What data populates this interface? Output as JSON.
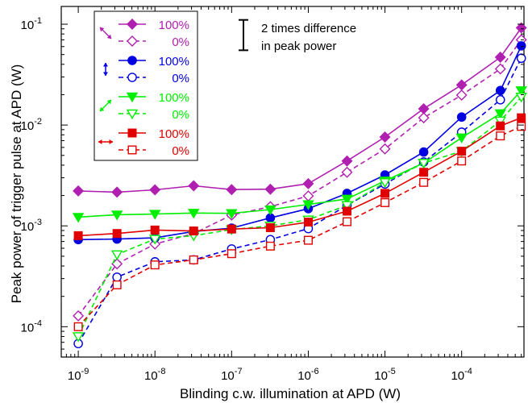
{
  "chart_data": {
    "type": "line",
    "xlabel": "Blinding c.w. illumination at APD (W)",
    "ylabel": "Peak power of trigger pulse at APD (W)",
    "xscale": "log",
    "yscale": "log",
    "xlim": [
      6e-10,
      0.00065
    ],
    "ylim": [
      5e-05,
      0.15
    ],
    "x_ticks": [
      {
        "value": 1e-09,
        "base": "10",
        "exp": "-9"
      },
      {
        "value": 1e-08,
        "base": "10",
        "exp": "-8"
      },
      {
        "value": 1e-07,
        "base": "10",
        "exp": "-7"
      },
      {
        "value": 1e-06,
        "base": "10",
        "exp": "-6"
      },
      {
        "value": 1e-05,
        "base": "10",
        "exp": "-5"
      },
      {
        "value": 0.0001,
        "base": "10",
        "exp": "-4"
      }
    ],
    "y_ticks": [
      {
        "value": 0.0001,
        "base": "10",
        "exp": "-4"
      },
      {
        "value": 0.001,
        "base": "10",
        "exp": "-3"
      },
      {
        "value": 0.01,
        "base": "10",
        "exp": "-2"
      },
      {
        "value": 0.1,
        "base": "10",
        "exp": "-1"
      }
    ],
    "x": [
      1e-09,
      3.2e-09,
      1e-08,
      3.2e-08,
      1e-07,
      3.2e-07,
      1e-06,
      3.2e-06,
      1e-05,
      3.2e-05,
      0.0001,
      0.00032,
      0.0006
    ],
    "series": [
      {
        "name": "100%",
        "group": "diagonal-nesw",
        "color": "#b020b0",
        "marker": "diamond",
        "filled": true,
        "dashed": false,
        "values": [
          0.00222,
          0.00216,
          0.00228,
          0.0025,
          0.00229,
          0.00231,
          0.00262,
          0.0044,
          0.0076,
          0.0145,
          0.025,
          0.047,
          0.092
        ]
      },
      {
        "name": "0%",
        "group": "diagonal-nesw",
        "color": "#b020b0",
        "marker": "diamond",
        "filled": false,
        "dashed": true,
        "values": [
          0.000128,
          0.00042,
          0.00066,
          0.00084,
          0.00128,
          0.00155,
          0.00198,
          0.0034,
          0.0058,
          0.0118,
          0.0198,
          0.036,
          0.07
        ]
      },
      {
        "name": "100%",
        "group": "vertical",
        "color": "#0000e0",
        "marker": "circle",
        "filled": true,
        "dashed": false,
        "values": [
          0.00073,
          0.00074,
          0.00076,
          0.00088,
          0.00095,
          0.0012,
          0.00148,
          0.0021,
          0.0032,
          0.0054,
          0.012,
          0.022,
          0.061
        ]
      },
      {
        "name": "0%",
        "group": "vertical",
        "color": "#0000e0",
        "marker": "circle",
        "filled": false,
        "dashed": true,
        "values": [
          6.8e-05,
          0.00031,
          0.00044,
          0.00046,
          0.00059,
          0.00073,
          0.00094,
          0.0016,
          0.0026,
          0.0043,
          0.0085,
          0.0178,
          0.046
        ]
      },
      {
        "name": "100%",
        "group": "diagonal-swne",
        "color": "#00ee00",
        "marker": "triangle-down",
        "filled": true,
        "dashed": false,
        "values": [
          0.00122,
          0.00129,
          0.00131,
          0.00134,
          0.00133,
          0.00145,
          0.00163,
          0.00185,
          0.0028,
          0.0042,
          0.0075,
          0.013,
          0.022
        ]
      },
      {
        "name": "0%",
        "group": "diagonal-swne",
        "color": "#00ee00",
        "marker": "triangle-down",
        "filled": false,
        "dashed": true,
        "values": [
          8e-05,
          0.00052,
          0.00074,
          0.0008,
          0.00092,
          0.001,
          0.00115,
          0.0016,
          0.0027,
          0.0042,
          0.0055,
          0.011,
          0.019
        ]
      },
      {
        "name": "100%",
        "group": "horizontal",
        "color": "#e00000",
        "marker": "square",
        "filled": true,
        "dashed": false,
        "values": [
          0.0008,
          0.00084,
          0.00091,
          0.00089,
          0.00093,
          0.00096,
          0.00109,
          0.0014,
          0.0021,
          0.0034,
          0.0055,
          0.0098,
          0.0118
        ]
      },
      {
        "name": "0%",
        "group": "horizontal",
        "color": "#e00000",
        "marker": "square",
        "filled": false,
        "dashed": true,
        "values": [
          0.0001,
          0.00026,
          0.00041,
          0.00046,
          0.00053,
          0.00063,
          0.00072,
          0.0011,
          0.0017,
          0.0027,
          0.0044,
          0.0078,
          0.0097
        ]
      }
    ],
    "legend": {
      "placement": "top-left",
      "show_group_arrows": true
    },
    "annotation": {
      "lines": [
        "2 times difference",
        "in peak power"
      ],
      "bar_factor": 2,
      "bar_ymid": 0.078
    }
  }
}
